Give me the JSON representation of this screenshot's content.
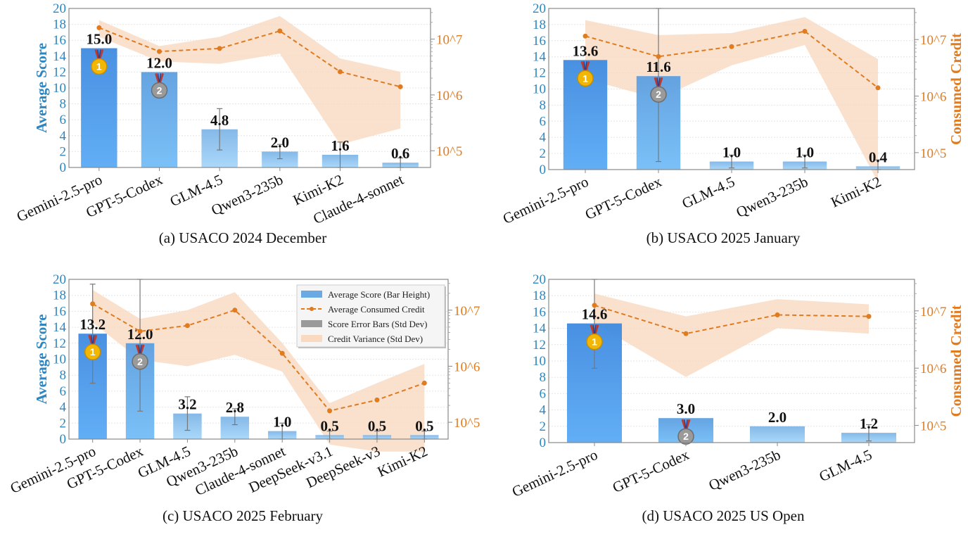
{
  "colors": {
    "score_axis": "#2e86c1",
    "credit_axis": "#e07b1f",
    "credit_band": "#f9d9c0",
    "bar_top": "#3d8be0",
    "bar_bottom": "#8cc8f7",
    "error_bar": "#777777",
    "gold": "#f2b705",
    "silver": "#9a9a9a"
  },
  "chart_data": [
    {
      "type": "bar",
      "caption": "(a) USACO 2024 December",
      "ylabel": "Average Score",
      "y2label": "",
      "ylim": [
        0,
        20
      ],
      "yticks": [
        "0",
        "2",
        "4",
        "6",
        "8",
        "10",
        "12",
        "14",
        "16",
        "18",
        "20"
      ],
      "y2scale": "log",
      "y2ticks": [
        "10^5",
        "10^6",
        "10^7"
      ],
      "categories": [
        "Gemini-2.5-pro",
        "GPT-5-Codex",
        "GLM-4.5",
        "Qwen3-235b",
        "Kimi-K2",
        "Claude-4-sonnet"
      ],
      "value_labels": [
        "15.0",
        "12.0",
        "4.8",
        "2.0",
        "1.6",
        "0.6"
      ],
      "values": [
        15.0,
        12.0,
        4.8,
        2.0,
        1.6,
        0.6
      ],
      "score_std": [
        0,
        0,
        2.6,
        0.9,
        1.6,
        0.6
      ],
      "medals": [
        1,
        2,
        0,
        0,
        0,
        0
      ],
      "credit": [
        16000000.0,
        6000000.0,
        6800000.0,
        14000000.0,
        2600000.0,
        1400000.0
      ],
      "credit_low": [
        11000000.0,
        4000000.0,
        3600000.0,
        5500000.0,
        130000.0,
        250000.0
      ],
      "credit_high": [
        22000000.0,
        7500000.0,
        11000000.0,
        26000000.0,
        4500000.0,
        2600000.0
      ]
    },
    {
      "type": "bar",
      "caption": "(b) USACO 2025 January",
      "ylabel": "",
      "y2label": "Consumed Credit",
      "ylim": [
        0,
        20
      ],
      "yticks": [
        "0",
        "2",
        "4",
        "6",
        "8",
        "10",
        "12",
        "14",
        "16",
        "18",
        "20"
      ],
      "y2scale": "log",
      "y2ticks": [
        "10^5",
        "10^6",
        "10^7"
      ],
      "categories": [
        "Gemini-2.5-pro",
        "GPT-5-Codex",
        "GLM-4.5",
        "Qwen3-235b",
        "Kimi-K2"
      ],
      "value_labels": [
        "13.6",
        "11.6",
        "1.0",
        "1.0",
        "0.4"
      ],
      "values": [
        13.6,
        11.6,
        1.0,
        1.0,
        0.4
      ],
      "score_std": [
        0,
        10.6,
        0.8,
        0.8,
        0.8
      ],
      "medals": [
        1,
        2,
        0,
        0,
        0
      ],
      "credit": [
        11500000.0,
        5000000.0,
        7500000.0,
        14000000.0,
        1400000.0
      ],
      "credit_low": [
        2000000.0,
        900000.0,
        3500000.0,
        8000000.0,
        30000.0
      ],
      "credit_high": [
        22000000.0,
        12000000.0,
        13000000.0,
        25000000.0,
        4500000.0
      ]
    },
    {
      "type": "bar",
      "caption": "(c) USACO 2025 February",
      "ylabel": "Average Score",
      "y2label": "",
      "ylim": [
        0,
        20
      ],
      "yticks": [
        "0",
        "2",
        "4",
        "6",
        "8",
        "10",
        "12",
        "14",
        "16",
        "18",
        "20"
      ],
      "y2scale": "log",
      "y2ticks": [
        "10^5",
        "10^6",
        "10^7"
      ],
      "categories": [
        "Gemini-2.5-pro",
        "GPT-5-Codex",
        "GLM-4.5",
        "Qwen3-235b",
        "Claude-4-sonnet",
        "DeepSeek-v3.1",
        "DeepSeek-v3",
        "Kimi-K2"
      ],
      "value_labels": [
        "13.2",
        "12.0",
        "3.2",
        "2.8",
        "1.0",
        "0.5",
        "0.5",
        "0.5"
      ],
      "values": [
        13.2,
        12.0,
        3.2,
        2.8,
        1.0,
        0.5,
        0.5,
        0.5
      ],
      "score_std": [
        6.2,
        8.5,
        2.1,
        1.0,
        1.0,
        0.5,
        0.5,
        0.5
      ],
      "medals": [
        1,
        2,
        0,
        0,
        0,
        0,
        0,
        0
      ],
      "credit": [
        13000000.0,
        4200000.0,
        5300000.0,
        10000000.0,
        1700000.0,
        160000.0,
        250000.0,
        500000.0
      ],
      "credit_low": [
        6000000.0,
        1300000.0,
        1000000.0,
        1600000.0,
        800000.0,
        40000.0,
        30000.0,
        30000.0
      ],
      "credit_high": [
        23000000.0,
        7000000.0,
        10000000.0,
        21000000.0,
        2600000.0,
        220000.0,
        500000.0,
        1100000.0
      ],
      "legend": {
        "position": "top-right",
        "entries": [
          "Average Score (Bar Height)",
          "Average Consumed Credit",
          "Score Error Bars (Std Dev)",
          "Credit Variance (Std Dev)"
        ]
      }
    },
    {
      "type": "bar",
      "caption": "(d) USACO 2025 US Open",
      "ylabel": "",
      "y2label": "Consumed Credit",
      "ylim": [
        0,
        20
      ],
      "yticks": [
        "0",
        "2",
        "4",
        "6",
        "8",
        "10",
        "12",
        "14",
        "16",
        "18",
        "20"
      ],
      "y2scale": "log",
      "y2ticks": [
        "10^5",
        "10^6",
        "10^7"
      ],
      "categories": [
        "Gemini-2.5-pro",
        "GPT-5-Codex",
        "Qwen3-235b",
        "GLM-4.5"
      ],
      "value_labels": [
        "14.6",
        "3.0",
        "2.0",
        "1.2"
      ],
      "values": [
        14.6,
        3.0,
        2.0,
        1.2
      ],
      "score_std": [
        5.5,
        0,
        0,
        1.0
      ],
      "medals": [
        1,
        2,
        0,
        0
      ],
      "credit": [
        12500000.0,
        4000000.0,
        8500000.0,
        8000000.0
      ],
      "credit_low": [
        6000000.0,
        700000.0,
        5000000.0,
        4000000.0
      ],
      "credit_high": [
        20000000.0,
        8000000.0,
        16000000.0,
        13000000.0
      ]
    }
  ]
}
